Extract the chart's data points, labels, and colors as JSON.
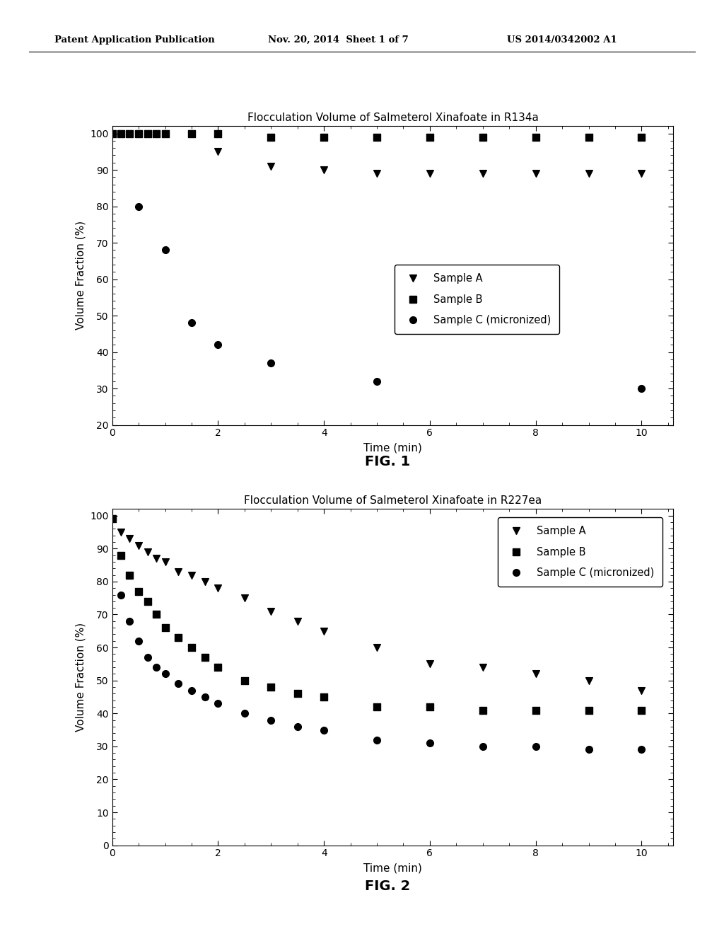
{
  "header_left": "Patent Application Publication",
  "header_center": "Nov. 20, 2014  Sheet 1 of 7",
  "header_right": "US 2014/0342002 A1",
  "fig1_title": "Flocculation Volume of Salmeterol Xinafoate in R134a",
  "fig1_xlabel": "Time (min)",
  "fig1_ylabel": "Volume Fraction (%)",
  "fig1_label": "FIG. 1",
  "fig1_xlim": [
    0,
    10.6
  ],
  "fig1_ylim": [
    20,
    102
  ],
  "fig1_yticks": [
    20,
    30,
    40,
    50,
    60,
    70,
    80,
    90,
    100
  ],
  "fig1_xticks": [
    0,
    2,
    4,
    6,
    8,
    10
  ],
  "fig1_sampleA_x": [
    0,
    0.17,
    0.33,
    0.5,
    0.67,
    0.83,
    1.0,
    1.5,
    2.0,
    3.0,
    4.0,
    5.0,
    6.0,
    7.0,
    8.0,
    9.0,
    10.0
  ],
  "fig1_sampleA_y": [
    100,
    100,
    100,
    100,
    100,
    100,
    100,
    100,
    95,
    91,
    90,
    89,
    89,
    89,
    89,
    89,
    89
  ],
  "fig1_sampleB_x": [
    0,
    0.17,
    0.33,
    0.5,
    0.67,
    0.83,
    1.0,
    1.5,
    2.0,
    3.0,
    4.0,
    5.0,
    6.0,
    7.0,
    8.0,
    9.0,
    10.0
  ],
  "fig1_sampleB_y": [
    100,
    100,
    100,
    100,
    100,
    100,
    100,
    100,
    100,
    99,
    99,
    99,
    99,
    99,
    99,
    99,
    99
  ],
  "fig1_sampleC_x": [
    0.5,
    1.0,
    1.5,
    2.0,
    3.0,
    5.0,
    10.0
  ],
  "fig1_sampleC_y": [
    80,
    68,
    48,
    42,
    37,
    32,
    30
  ],
  "fig2_title": "Flocculation Volume of Salmeterol Xinafoate in R227ea",
  "fig2_xlabel": "Time (min)",
  "fig2_ylabel": "Volume Fraction (%)",
  "fig2_label": "FIG. 2",
  "fig2_xlim": [
    0,
    10.6
  ],
  "fig2_ylim": [
    0,
    102
  ],
  "fig2_yticks": [
    0,
    10,
    20,
    30,
    40,
    50,
    60,
    70,
    80,
    90,
    100
  ],
  "fig2_xticks": [
    0,
    2,
    4,
    6,
    8,
    10
  ],
  "fig2_sampleA_x": [
    0,
    0.17,
    0.33,
    0.5,
    0.67,
    0.83,
    1.0,
    1.25,
    1.5,
    1.75,
    2.0,
    2.5,
    3.0,
    3.5,
    4.0,
    5.0,
    6.0,
    7.0,
    8.0,
    9.0,
    10.0
  ],
  "fig2_sampleA_y": [
    99,
    95,
    93,
    91,
    89,
    87,
    86,
    83,
    82,
    80,
    78,
    75,
    71,
    68,
    65,
    60,
    55,
    54,
    52,
    50,
    47
  ],
  "fig2_sampleB_x": [
    0,
    0.17,
    0.33,
    0.5,
    0.67,
    0.83,
    1.0,
    1.25,
    1.5,
    1.75,
    2.0,
    2.5,
    3.0,
    3.5,
    4.0,
    5.0,
    6.0,
    7.0,
    8.0,
    9.0,
    10.0
  ],
  "fig2_sampleB_y": [
    99,
    88,
    82,
    77,
    74,
    70,
    66,
    63,
    60,
    57,
    54,
    50,
    48,
    46,
    45,
    42,
    42,
    41,
    41,
    41,
    41
  ],
  "fig2_sampleC_x": [
    0,
    0.17,
    0.33,
    0.5,
    0.67,
    0.83,
    1.0,
    1.25,
    1.5,
    1.75,
    2.0,
    2.5,
    3.0,
    3.5,
    4.0,
    5.0,
    6.0,
    7.0,
    8.0,
    9.0,
    10.0
  ],
  "fig2_sampleC_y": [
    99,
    76,
    68,
    62,
    57,
    54,
    52,
    49,
    47,
    45,
    43,
    40,
    38,
    36,
    35,
    32,
    31,
    30,
    30,
    29,
    29
  ],
  "legend_labels": [
    "Sample A",
    "Sample B",
    "Sample C (micronized)"
  ],
  "marker_sampleA": "v",
  "marker_sampleB": "s",
  "marker_sampleC": "o",
  "marker_color": "black",
  "marker_size": 7,
  "background_color": "#ffffff"
}
